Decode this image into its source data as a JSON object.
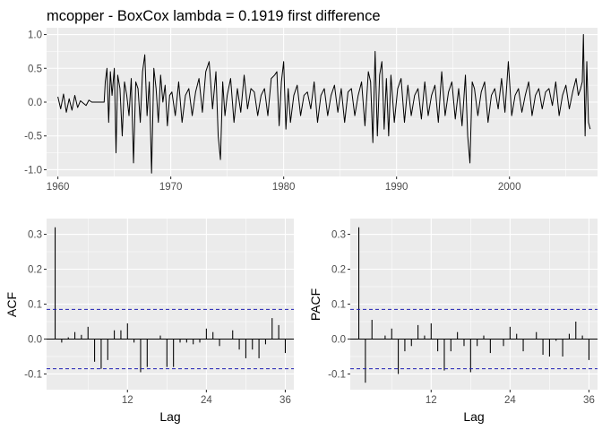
{
  "chart_data": [
    {
      "type": "line",
      "title": "mcopper - BoxCox lambda =  0.1919 first difference",
      "xlabel": "",
      "ylabel": "",
      "xlim": [
        1959.0,
        2007.8
      ],
      "ylim": [
        -1.1,
        1.1
      ],
      "x_ticks": [
        1960,
        1970,
        1980,
        1990,
        2000
      ],
      "x_tick_labels": [
        "1960",
        "1970",
        "1980",
        "1990",
        "2000"
      ],
      "y_ticks": [
        1.0,
        0.5,
        0.0,
        -0.5,
        -1.0
      ],
      "y_tick_labels": [
        "1.0",
        "0.5",
        "0.0",
        "-0.5",
        "-1.0"
      ],
      "grid": true,
      "series": [
        {
          "x": [
            1960.0,
            1960.25,
            1960.5,
            1960.75,
            1961.0,
            1961.25,
            1961.5,
            1961.75,
            1962.0,
            1962.5,
            1962.75,
            1963.0,
            1963.5,
            1964.0,
            1964.1,
            1964.2,
            1964.35,
            1964.5,
            1964.65,
            1964.8,
            1965.0,
            1965.15,
            1965.3,
            1965.5,
            1965.7,
            1965.9,
            1966.1,
            1966.3,
            1966.5,
            1966.7,
            1966.9,
            1967.1,
            1967.3,
            1967.5,
            1967.7,
            1967.9,
            1968.1,
            1968.3,
            1968.5,
            1968.7,
            1968.9,
            1969.1,
            1969.3,
            1969.5,
            1969.7,
            1969.9,
            1970.1,
            1970.4,
            1970.7,
            1971.0,
            1971.3,
            1971.6,
            1971.9,
            1972.2,
            1972.5,
            1972.8,
            1973.1,
            1973.4,
            1973.7,
            1974.0,
            1974.2,
            1974.4,
            1974.6,
            1974.8,
            1975.0,
            1975.3,
            1975.6,
            1975.9,
            1976.2,
            1976.5,
            1976.8,
            1977.1,
            1977.4,
            1977.7,
            1978.0,
            1978.3,
            1978.6,
            1978.9,
            1979.2,
            1979.4,
            1979.6,
            1979.8,
            1980.0,
            1980.2,
            1980.4,
            1980.6,
            1980.9,
            1981.2,
            1981.5,
            1981.8,
            1982.1,
            1982.4,
            1982.7,
            1983.0,
            1983.3,
            1983.6,
            1983.9,
            1984.2,
            1984.5,
            1984.8,
            1985.1,
            1985.4,
            1985.7,
            1986.0,
            1986.3,
            1986.6,
            1986.9,
            1987.2,
            1987.5,
            1987.7,
            1987.9,
            1988.1,
            1988.3,
            1988.5,
            1988.7,
            1988.9,
            1989.1,
            1989.3,
            1989.5,
            1989.8,
            1990.1,
            1990.4,
            1990.7,
            1991.0,
            1991.3,
            1991.6,
            1991.9,
            1992.2,
            1992.5,
            1992.8,
            1993.1,
            1993.4,
            1993.7,
            1994.0,
            1994.3,
            1994.6,
            1994.9,
            1995.2,
            1995.5,
            1995.8,
            1996.1,
            1996.3,
            1996.5,
            1996.7,
            1996.9,
            1997.2,
            1997.5,
            1997.8,
            1998.1,
            1998.4,
            1998.7,
            1999.0,
            1999.3,
            1999.6,
            1999.9,
            2000.2,
            2000.5,
            2000.8,
            2001.1,
            2001.4,
            2001.7,
            2002.0,
            2002.3,
            2002.6,
            2002.9,
            2003.2,
            2003.5,
            2003.8,
            2004.1,
            2004.4,
            2004.7,
            2005.0,
            2005.3,
            2005.6,
            2005.9,
            2006.1,
            2006.3,
            2006.45,
            2006.55,
            2006.7,
            2006.85,
            2007.0,
            2007.15
          ],
          "y": [
            0.08,
            -0.1,
            0.12,
            -0.15,
            0.05,
            -0.12,
            0.1,
            -0.08,
            0.02,
            -0.05,
            0.03,
            0.0,
            0.0,
            0.0,
            0.0,
            0.3,
            0.5,
            -0.3,
            0.45,
            0.1,
            0.5,
            -0.75,
            0.4,
            0.2,
            -0.5,
            0.3,
            0.1,
            -0.2,
            0.35,
            -0.9,
            0.3,
            0.2,
            -0.3,
            0.45,
            0.7,
            -0.2,
            0.3,
            -1.05,
            0.5,
            0.2,
            -0.3,
            0.4,
            0.0,
            0.25,
            -0.35,
            0.1,
            0.15,
            -0.2,
            0.3,
            -0.3,
            0.1,
            0.2,
            -0.2,
            0.15,
            0.35,
            -0.15,
            0.45,
            0.6,
            -0.1,
            0.45,
            -0.5,
            -0.85,
            0.3,
            -0.2,
            0.1,
            0.35,
            -0.3,
            0.2,
            -0.15,
            0.4,
            -0.1,
            0.2,
            0.15,
            -0.2,
            0.1,
            0.2,
            -0.2,
            0.35,
            0.4,
            0.45,
            -0.35,
            0.3,
            0.6,
            -0.4,
            0.2,
            -0.3,
            0.1,
            0.25,
            -0.2,
            0.1,
            0.15,
            -0.1,
            0.3,
            -0.3,
            0.1,
            0.2,
            -0.2,
            0.1,
            0.25,
            -0.15,
            0.2,
            -0.3,
            0.15,
            0.2,
            -0.2,
            0.1,
            0.3,
            -0.35,
            0.45,
            0.3,
            -0.6,
            0.75,
            -0.5,
            0.4,
            0.6,
            -0.4,
            0.35,
            -0.5,
            0.4,
            -0.3,
            0.2,
            0.35,
            -0.3,
            0.25,
            -0.2,
            0.1,
            0.2,
            -0.25,
            0.3,
            -0.2,
            0.1,
            0.25,
            -0.3,
            0.45,
            -0.2,
            0.15,
            0.3,
            -0.25,
            0.2,
            -0.35,
            0.4,
            -0.5,
            -0.9,
            0.3,
            0.2,
            -0.2,
            0.15,
            0.3,
            -0.3,
            0.1,
            0.2,
            -0.1,
            0.35,
            -0.15,
            0.6,
            -0.2,
            0.1,
            0.2,
            -0.15,
            0.1,
            0.3,
            -0.2,
            0.1,
            0.2,
            -0.1,
            0.15,
            0.2,
            -0.05,
            0.3,
            -0.2,
            0.1,
            0.25,
            -0.1,
            0.15,
            0.35,
            0.1,
            0.2,
            0.3,
            1.0,
            -0.5,
            0.6,
            -0.3,
            -0.4
          ]
        }
      ]
    },
    {
      "type": "bar",
      "title": "",
      "xlabel": "Lag",
      "ylabel": "ACF",
      "xlim": [
        -0.3,
        37.3
      ],
      "ylim": [
        -0.145,
        0.345
      ],
      "x_ticks": [
        12,
        24,
        36
      ],
      "x_tick_labels": [
        "12",
        "24",
        "36"
      ],
      "y_ticks": [
        0.3,
        0.2,
        0.1,
        0.0,
        -0.1
      ],
      "y_tick_labels": [
        "0.3",
        "0.2",
        "0.1",
        "0.0",
        "-0.1"
      ],
      "confidence_bound": 0.085,
      "grid": true,
      "x": [
        1,
        2,
        3,
        4,
        5,
        6,
        7,
        8,
        9,
        10,
        11,
        12,
        13,
        14,
        15,
        16,
        17,
        18,
        19,
        20,
        21,
        22,
        23,
        24,
        25,
        26,
        27,
        28,
        29,
        30,
        31,
        32,
        33,
        34,
        35,
        36
      ],
      "values": [
        0.32,
        -0.01,
        0.005,
        0.02,
        0.012,
        0.035,
        -0.065,
        -0.085,
        -0.06,
        0.025,
        0.025,
        0.045,
        -0.01,
        -0.095,
        -0.08,
        0.0,
        0.01,
        -0.08,
        -0.08,
        -0.01,
        -0.01,
        -0.015,
        -0.01,
        0.03,
        0.02,
        -0.02,
        0.0,
        0.025,
        -0.03,
        -0.055,
        -0.03,
        -0.055,
        -0.015,
        0.06,
        0.04,
        -0.04
      ]
    },
    {
      "type": "bar",
      "title": "",
      "xlabel": "Lag",
      "ylabel": "PACF",
      "xlim": [
        -0.3,
        37.3
      ],
      "ylim": [
        -0.145,
        0.345
      ],
      "x_ticks": [
        12,
        24,
        36
      ],
      "x_tick_labels": [
        "12",
        "24",
        "36"
      ],
      "y_ticks": [
        0.3,
        0.2,
        0.1,
        0.0,
        -0.1
      ],
      "y_tick_labels": [
        "0.3",
        "0.2",
        "0.1",
        "0.0",
        "-0.1"
      ],
      "confidence_bound": 0.085,
      "grid": true,
      "x": [
        1,
        2,
        3,
        4,
        5,
        6,
        7,
        8,
        9,
        10,
        11,
        12,
        13,
        14,
        15,
        16,
        17,
        18,
        19,
        20,
        21,
        22,
        23,
        24,
        25,
        26,
        27,
        28,
        29,
        30,
        31,
        32,
        33,
        34,
        35,
        36
      ],
      "values": [
        0.32,
        -0.125,
        0.055,
        0.0,
        0.01,
        0.03,
        -0.1,
        -0.035,
        -0.02,
        0.04,
        0.01,
        0.045,
        -0.035,
        -0.09,
        -0.035,
        0.02,
        -0.02,
        -0.095,
        -0.02,
        0.01,
        -0.04,
        0.0,
        -0.02,
        0.035,
        0.015,
        -0.035,
        0.0,
        0.02,
        -0.045,
        -0.05,
        -0.005,
        -0.05,
        0.015,
        0.05,
        0.01,
        -0.06
      ]
    }
  ]
}
